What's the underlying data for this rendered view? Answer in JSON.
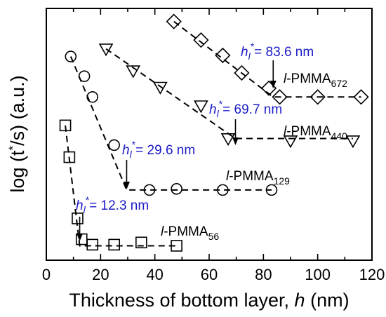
{
  "chart_data": {
    "type": "line",
    "title": "",
    "xlabel": "Thickness of bottom layer, h (nm)",
    "ylabel": "log (t*/s) (a.u.)",
    "xlim": [
      0,
      120
    ],
    "xticks": [
      "0",
      "20",
      "40",
      "60",
      "80",
      "100",
      "120"
    ],
    "ylim": [
      0,
      10
    ],
    "y_ticks_labeled": false,
    "grid": false,
    "legend": "none",
    "annotation_color": "#1c1cc8",
    "series": [
      {
        "name": "l-PMMA56",
        "label_prefix": "l",
        "label_main": "-PMMA",
        "label_sub": "56",
        "marker": "square",
        "x": [
          7,
          8.5,
          11.5,
          13,
          17,
          25,
          35,
          48
        ],
        "y": [
          5.55,
          4.1,
          1.3,
          0.35,
          0.1,
          0.1,
          0.2,
          0.05
        ],
        "fit_x": [
          7,
          12.3,
          48
        ],
        "fit_y": [
          5.55,
          0.05,
          0.05
        ],
        "transition": {
          "value_text": "12.3 nm",
          "x": 12.3
        }
      },
      {
        "name": "l-PMMA129",
        "label_prefix": "l",
        "label_main": "-PMMA",
        "label_sub": "129",
        "marker": "circle",
        "x": [
          9,
          14,
          17,
          25,
          38,
          48,
          65,
          83
        ],
        "y": [
          8.7,
          7.8,
          6.85,
          4.65,
          2.6,
          2.65,
          2.6,
          2.6
        ],
        "fit_x": [
          9,
          29.6,
          83
        ],
        "fit_y": [
          8.7,
          2.6,
          2.6
        ],
        "transition": {
          "value_text": "29.6 nm",
          "x": 29.6
        }
      },
      {
        "name": "l-PMMA440",
        "label_prefix": "l",
        "label_main": "-PMMA",
        "label_sub": "440",
        "marker": "triangle-down",
        "x": [
          22,
          32,
          42,
          57,
          67,
          90,
          113
        ],
        "y": [
          9.05,
          8.05,
          7.3,
          6.45,
          4.95,
          4.85,
          4.85
        ],
        "fit_x": [
          22,
          69.7,
          113
        ],
        "fit_y": [
          9.05,
          4.95,
          4.95
        ],
        "transition": {
          "value_text": "69.7 nm",
          "x": 69.7
        }
      },
      {
        "name": "l-PMMA672",
        "label_prefix": "l",
        "label_main": "-PMMA",
        "label_sub": "672",
        "marker": "diamond",
        "x": [
          47,
          57,
          65,
          72,
          82,
          86,
          100,
          116
        ],
        "y": [
          10.3,
          9.45,
          8.75,
          7.95,
          7.25,
          6.85,
          6.85,
          6.85
        ],
        "fit_x": [
          47,
          83.6,
          116
        ],
        "fit_y": [
          10.3,
          6.85,
          6.85
        ],
        "transition": {
          "value_text": "83.6 nm",
          "x": 83.6
        }
      }
    ],
    "annotation_symbol": {
      "base": "h",
      "sub": "l",
      "sup": "*",
      "eq": "="
    }
  }
}
